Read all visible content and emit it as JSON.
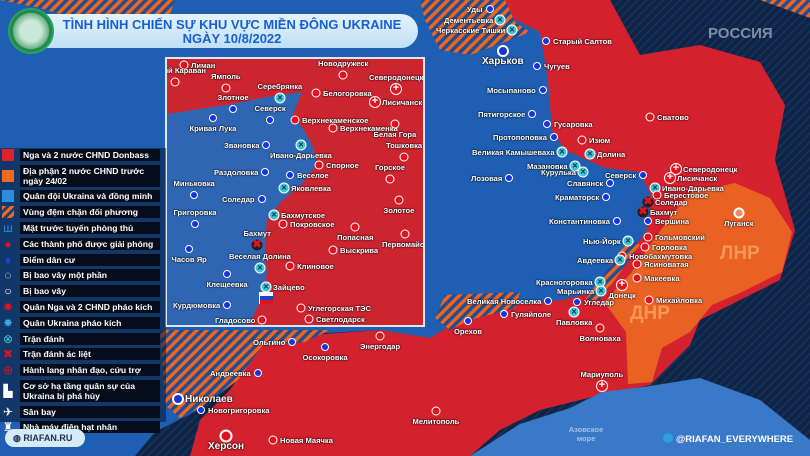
{
  "header": {
    "title_line1": "TÌNH HÌNH CHIẾN SỰ KHU VỰC MIỀN ĐÔNG UKRAINE",
    "title_line2": "NGÀY 10/8/2022"
  },
  "colors": {
    "russia_dpr_lpr": "#d3212e",
    "dpr_lpr_pre_2402": "#f0641e",
    "ukraine": "#1e63b8",
    "buffer_stripe": "#f0641e",
    "sea": "#3a78c8"
  },
  "legend": [
    {
      "icon": "red-square",
      "label": "Nga và 2 nước CHND Donbass"
    },
    {
      "icon": "orange-square",
      "label": "Địa phận 2 nước CHND trước ngày 24/02"
    },
    {
      "icon": "blue-square",
      "label": "Quân đội Ukraina và đồng minh"
    },
    {
      "icon": "hatched-square",
      "label": "Vùng đệm chặn đối phương"
    },
    {
      "icon": "defense-line-icon",
      "label": "Mặt trước tuyến phòng thủ"
    },
    {
      "icon": "red-dot",
      "label": "Các thành phố được giải phóng"
    },
    {
      "icon": "blue-dot",
      "label": "Điểm dân cư"
    },
    {
      "icon": "dashed-circle",
      "label": "Bị bao vây một phần"
    },
    {
      "icon": "circle",
      "label": "Bị bao vây"
    },
    {
      "icon": "russian-artillery-icon",
      "label": "Quân Nga và 2 CHND pháo kích"
    },
    {
      "icon": "ukrainian-artillery-icon",
      "label": "Quân Ukraina pháo kích"
    },
    {
      "icon": "battle-icon",
      "label": "Trận đánh"
    },
    {
      "icon": "fierce-battle-icon",
      "label": "Trận đánh ác liệt"
    },
    {
      "icon": "humanitarian-corridor-icon",
      "label": "Hành lang nhân đạo, cứu trợ"
    },
    {
      "icon": "destroyed-military-infrastructure-icon",
      "label": "Cơ sở hạ tầng quân sự của Ukraina bị phá hủy"
    },
    {
      "icon": "airport-icon",
      "label": "Sân bay"
    },
    {
      "icon": "nuclear-plant-icon",
      "label": "Nhà máy điện hạt nhân"
    }
  ],
  "map_labels": {
    "russia": "РОССИЯ",
    "lnr": "ЛНР",
    "dnr": "ДНР",
    "sea_line1": "Азовское",
    "sea_line2": "море"
  },
  "places": [
    {
      "name": "Уды",
      "type": "blue"
    },
    {
      "name": "Дементьевка",
      "type": "battle"
    },
    {
      "name": "Черкасские Тишки",
      "type": "battle"
    },
    {
      "name": "Старый Салтов",
      "type": "blue"
    },
    {
      "name": "Харьков",
      "type": "bigblue"
    },
    {
      "name": "Чугуев",
      "type": "blue"
    },
    {
      "name": "Мосыпаново",
      "type": "blue"
    },
    {
      "name": "Пятигорское",
      "type": "blue"
    },
    {
      "name": "Гусаровка",
      "type": "blue"
    },
    {
      "name": "Протопоповка",
      "type": "blue"
    },
    {
      "name": "Изюм",
      "type": "red"
    },
    {
      "name": "Сватово",
      "type": "red"
    },
    {
      "name": "Великая Камышеваха",
      "type": "battle"
    },
    {
      "name": "Долина",
      "type": "battle"
    },
    {
      "name": "Мазановка",
      "type": "battle"
    },
    {
      "name": "Курулька",
      "type": "battle"
    },
    {
      "name": "Лозовая",
      "type": "blue"
    },
    {
      "name": "Славянск",
      "type": "blue"
    },
    {
      "name": "Северск",
      "type": "blue"
    },
    {
      "name": "Краматорск",
      "type": "blue"
    },
    {
      "name": "Северодонецк",
      "type": "aid"
    },
    {
      "name": "Лисичанск",
      "type": "aid"
    },
    {
      "name": "Ивано-Дарьевка",
      "type": "battle"
    },
    {
      "name": "Берестовое",
      "type": "red"
    },
    {
      "name": "Соледар",
      "type": "fierce"
    },
    {
      "name": "Бахмут",
      "type": "fierce"
    },
    {
      "name": "Вершина",
      "type": "blue"
    },
    {
      "name": "Луганск",
      "type": "orange"
    },
    {
      "name": "Константиновка",
      "type": "blue"
    },
    {
      "name": "Нью-Йорк",
      "type": "battle"
    },
    {
      "name": "Гольмовский",
      "type": "red"
    },
    {
      "name": "Горловка",
      "type": "red"
    },
    {
      "name": "Новобахмутовка",
      "type": "red"
    },
    {
      "name": "Авдеевка",
      "type": "battle"
    },
    {
      "name": "Ясиноватая",
      "type": "red"
    },
    {
      "name": "Макеевка",
      "type": "red"
    },
    {
      "name": "Красногоровка",
      "type": "battle"
    },
    {
      "name": "Марьинка",
      "type": "battle"
    },
    {
      "name": "Донецк",
      "type": "aid"
    },
    {
      "name": "Михайловка",
      "type": "red"
    },
    {
      "name": "Великая Новоселка",
      "type": "blue"
    },
    {
      "name": "Угледар",
      "type": "blue"
    },
    {
      "name": "Павловка",
      "type": "battle"
    },
    {
      "name": "Гуляйполе",
      "type": "blue"
    },
    {
      "name": "Орехов",
      "type": "blue"
    },
    {
      "name": "Волноваха",
      "type": "red"
    },
    {
      "name": "Мариуполь",
      "type": "aid"
    },
    {
      "name": "Мелитополь",
      "type": "red"
    },
    {
      "name": "Энергодар",
      "type": "red"
    },
    {
      "name": "Ольгино",
      "type": "blue"
    },
    {
      "name": "Осокоровка",
      "type": "blue"
    },
    {
      "name": "Андреевка",
      "type": "blue"
    },
    {
      "name": "Николаев",
      "type": "bigblue"
    },
    {
      "name": "Новогригоровка",
      "type": "blue"
    },
    {
      "name": "Херсон",
      "type": "bigred"
    },
    {
      "name": "Новая Маячка",
      "type": "red"
    }
  ],
  "inset_places": [
    {
      "name": "Лиман",
      "type": "red"
    },
    {
      "name": "Старый Караван",
      "type": "red"
    },
    {
      "name": "Ямполь",
      "type": "red"
    },
    {
      "name": "Серебрянка",
      "type": "battle"
    },
    {
      "name": "Новодружеск",
      "type": "red"
    },
    {
      "name": "Северодонецк",
      "type": "aid"
    },
    {
      "name": "Белогоровка",
      "type": "red"
    },
    {
      "name": "Лисичанск",
      "type": "aid"
    },
    {
      "name": "Злотное",
      "type": "blue"
    },
    {
      "name": "Северск",
      "type": "blue"
    },
    {
      "name": "Кривая Лука",
      "type": "blue"
    },
    {
      "name": "Верхнекаменское",
      "type": "red"
    },
    {
      "name": "Верхнекаменка",
      "type": "red"
    },
    {
      "name": "Белая Гора",
      "type": "red"
    },
    {
      "name": "Звановка",
      "type": "blue"
    },
    {
      "name": "Ивано-Дарьевка",
      "type": "battle"
    },
    {
      "name": "Тошковка",
      "type": "red"
    },
    {
      "name": "Спорное",
      "type": "red"
    },
    {
      "name": "Горское",
      "type": "red"
    },
    {
      "name": "Раздоловка",
      "type": "blue"
    },
    {
      "name": "Веселое",
      "type": "blue"
    },
    {
      "name": "Миньковка",
      "type": "blue"
    },
    {
      "name": "Яковлевка",
      "type": "battle"
    },
    {
      "name": "Соледар",
      "type": "blue"
    },
    {
      "name": "Бахмутское",
      "type": "battle"
    },
    {
      "name": "Покровское",
      "type": "red"
    },
    {
      "name": "Золотое",
      "type": "red"
    },
    {
      "name": "Григоровка",
      "type": "blue"
    },
    {
      "name": "Попасная",
      "type": "red"
    },
    {
      "name": "Первомайск",
      "type": "red"
    },
    {
      "name": "Бахмут",
      "type": "fierce"
    },
    {
      "name": "Часов Яр",
      "type": "blue"
    },
    {
      "name": "Выскрива",
      "type": "red"
    },
    {
      "name": "Веселая Долина",
      "type": "battle"
    },
    {
      "name": "Клиновое",
      "type": "red"
    },
    {
      "name": "Клещеевка",
      "type": "blue"
    },
    {
      "name": "Зайцево",
      "type": "battle"
    },
    {
      "name": "Курдюмовка",
      "type": "blue"
    },
    {
      "name": "Углегорская ТЭС",
      "type": "red"
    },
    {
      "name": "Гладосово",
      "type": "red"
    },
    {
      "name": "Светлодарск",
      "type": "red"
    }
  ],
  "footer": {
    "website": "RIAFAN.RU",
    "telegram": "@RIAFAN_EVERYWHERE"
  }
}
